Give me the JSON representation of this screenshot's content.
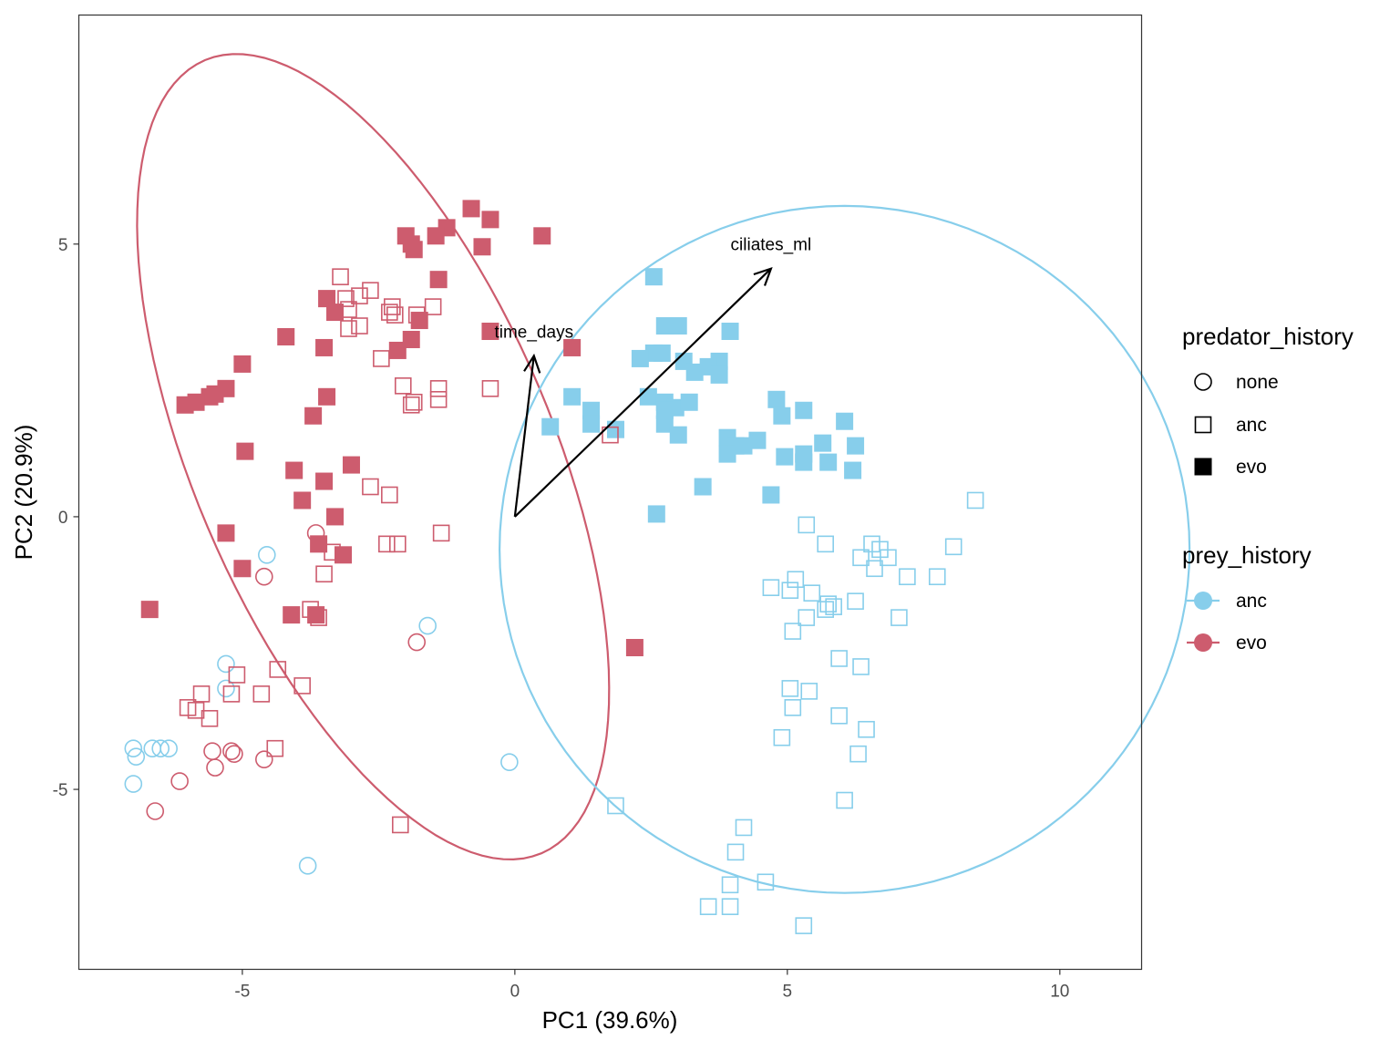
{
  "chart_data": {
    "type": "scatter",
    "title": "",
    "xlabel": "PC1 (39.6%)",
    "ylabel": "PC2 (20.9%)",
    "xlim": [
      -8.0,
      11.5
    ],
    "ylim": [
      -8.3,
      9.2
    ],
    "x_ticks": [
      {
        "value": -5,
        "label": "-5"
      },
      {
        "value": 0,
        "label": "0"
      },
      {
        "value": 5,
        "label": "5"
      },
      {
        "value": 10,
        "label": "10"
      }
    ],
    "y_ticks": [
      {
        "value": -5,
        "label": "-5"
      },
      {
        "value": 0,
        "label": "0"
      },
      {
        "value": 5,
        "label": "5"
      }
    ],
    "grid": false,
    "legend_placement": "right",
    "colors": {
      "anc": "#87ceeb",
      "evo": "#cd5c6e",
      "axis": "#333333"
    },
    "legends": [
      {
        "title": "predator_history",
        "entries": [
          {
            "label": "none",
            "shape": "circle-open"
          },
          {
            "label": "anc",
            "shape": "square-open"
          },
          {
            "label": "evo",
            "shape": "square-filled"
          }
        ]
      },
      {
        "title": "prey_history",
        "entries": [
          {
            "label": "anc",
            "color": "#87ceeb"
          },
          {
            "label": "evo",
            "color": "#cd5c6e"
          }
        ]
      }
    ],
    "loadings": [
      {
        "name": "time_days",
        "x": 0.35,
        "y": 2.95
      },
      {
        "name": "ciliates_ml",
        "x": 4.7,
        "y": 4.55
      }
    ],
    "ellipses": [
      {
        "prey_history": "evo",
        "center": [
          -2.6,
          1.1
        ],
        "semi_axes": [
          3.3,
          7.9
        ],
        "angle_deg": 23
      },
      {
        "prey_history": "anc",
        "center": [
          6.05,
          -0.6
        ],
        "semi_axes": [
          6.33,
          6.3
        ],
        "angle_deg": 0
      }
    ],
    "series": [
      {
        "prey_history": "anc",
        "predator_history": "none",
        "points": [
          [
            -4.55,
            -0.7
          ],
          [
            -5.3,
            -2.7
          ],
          [
            -5.3,
            -3.15
          ],
          [
            -7.0,
            -4.25
          ],
          [
            -6.95,
            -4.4
          ],
          [
            -6.5,
            -4.25
          ],
          [
            -6.35,
            -4.25
          ],
          [
            -6.65,
            -4.25
          ],
          [
            -7.0,
            -4.9
          ],
          [
            -1.6,
            -2.0
          ],
          [
            -0.1,
            -4.5
          ],
          [
            -3.8,
            -6.4
          ]
        ]
      },
      {
        "prey_history": "anc",
        "predator_history": "anc",
        "points": [
          [
            8.45,
            0.3
          ],
          [
            5.35,
            -0.15
          ],
          [
            5.7,
            -0.5
          ],
          [
            6.55,
            -0.5
          ],
          [
            6.7,
            -0.6
          ],
          [
            6.35,
            -0.75
          ],
          [
            6.85,
            -0.75
          ],
          [
            6.6,
            -0.95
          ],
          [
            8.05,
            -0.55
          ],
          [
            7.2,
            -1.1
          ],
          [
            7.75,
            -1.1
          ],
          [
            4.7,
            -1.3
          ],
          [
            5.15,
            -1.15
          ],
          [
            5.05,
            -1.35
          ],
          [
            5.45,
            -1.4
          ],
          [
            5.75,
            -1.6
          ],
          [
            5.7,
            -1.7
          ],
          [
            5.85,
            -1.65
          ],
          [
            6.25,
            -1.55
          ],
          [
            5.35,
            -1.85
          ],
          [
            5.1,
            -2.1
          ],
          [
            7.05,
            -1.85
          ],
          [
            5.95,
            -2.6
          ],
          [
            6.35,
            -2.75
          ],
          [
            5.05,
            -3.15
          ],
          [
            5.4,
            -3.2
          ],
          [
            5.1,
            -3.5
          ],
          [
            5.95,
            -3.65
          ],
          [
            6.45,
            -3.9
          ],
          [
            4.9,
            -4.05
          ],
          [
            6.3,
            -4.35
          ],
          [
            6.05,
            -5.2
          ],
          [
            1.85,
            -5.3
          ],
          [
            4.2,
            -5.7
          ],
          [
            4.05,
            -6.15
          ],
          [
            3.95,
            -6.75
          ],
          [
            4.6,
            -6.7
          ],
          [
            3.55,
            -7.15
          ],
          [
            3.95,
            -7.15
          ],
          [
            5.3,
            -7.5
          ]
        ]
      },
      {
        "prey_history": "anc",
        "predator_history": "evo",
        "points": [
          [
            2.55,
            4.4
          ],
          [
            3.0,
            3.5
          ],
          [
            2.75,
            3.5
          ],
          [
            3.95,
            3.4
          ],
          [
            2.55,
            3.0
          ],
          [
            2.7,
            3.0
          ],
          [
            2.3,
            2.9
          ],
          [
            3.1,
            2.85
          ],
          [
            3.75,
            2.85
          ],
          [
            3.3,
            2.65
          ],
          [
            3.55,
            2.75
          ],
          [
            3.75,
            2.6
          ],
          [
            1.05,
            2.2
          ],
          [
            2.45,
            2.2
          ],
          [
            2.75,
            2.1
          ],
          [
            2.95,
            2.0
          ],
          [
            3.2,
            2.1
          ],
          [
            1.4,
            1.95
          ],
          [
            1.4,
            1.7
          ],
          [
            0.65,
            1.65
          ],
          [
            1.85,
            1.6
          ],
          [
            2.75,
            1.7
          ],
          [
            2.75,
            1.95
          ],
          [
            3.0,
            1.5
          ],
          [
            3.9,
            1.45
          ],
          [
            4.05,
            1.3
          ],
          [
            3.9,
            1.15
          ],
          [
            4.2,
            1.3
          ],
          [
            4.45,
            1.4
          ],
          [
            4.8,
            2.15
          ],
          [
            4.9,
            1.85
          ],
          [
            5.3,
            1.95
          ],
          [
            6.05,
            1.75
          ],
          [
            6.25,
            1.3
          ],
          [
            5.65,
            1.35
          ],
          [
            5.3,
            1.15
          ],
          [
            5.3,
            1.0
          ],
          [
            4.95,
            1.1
          ],
          [
            5.75,
            1.0
          ],
          [
            6.2,
            0.85
          ],
          [
            3.45,
            0.55
          ],
          [
            4.7,
            0.4
          ],
          [
            2.6,
            0.05
          ]
        ]
      },
      {
        "prey_history": "evo",
        "predator_history": "none",
        "points": [
          [
            -3.65,
            -0.3
          ],
          [
            -4.6,
            -1.1
          ],
          [
            -1.8,
            -2.3
          ],
          [
            -5.55,
            -4.3
          ],
          [
            -5.2,
            -4.3
          ],
          [
            -5.15,
            -4.35
          ],
          [
            -4.6,
            -4.45
          ],
          [
            -5.5,
            -4.6
          ],
          [
            -6.15,
            -4.85
          ],
          [
            -6.6,
            -5.4
          ]
        ]
      },
      {
        "prey_history": "evo",
        "predator_history": "anc",
        "points": [
          [
            -3.2,
            4.4
          ],
          [
            -2.65,
            4.15
          ],
          [
            -3.1,
            4.0
          ],
          [
            -2.85,
            4.05
          ],
          [
            -3.05,
            3.8
          ],
          [
            -2.25,
            3.85
          ],
          [
            -2.3,
            3.75
          ],
          [
            -2.2,
            3.7
          ],
          [
            -1.8,
            3.7
          ],
          [
            -1.5,
            3.85
          ],
          [
            -3.05,
            3.45
          ],
          [
            -2.85,
            3.5
          ],
          [
            -2.45,
            2.9
          ],
          [
            -2.05,
            2.4
          ],
          [
            -1.4,
            2.35
          ],
          [
            -0.45,
            2.35
          ],
          [
            -1.85,
            2.1
          ],
          [
            -1.9,
            2.05
          ],
          [
            -1.4,
            2.15
          ],
          [
            1.75,
            1.5
          ],
          [
            -2.65,
            0.55
          ],
          [
            -2.3,
            0.4
          ],
          [
            -1.35,
            -0.3
          ],
          [
            -2.35,
            -0.5
          ],
          [
            -2.15,
            -0.5
          ],
          [
            -3.35,
            -0.65
          ],
          [
            -3.5,
            -1.05
          ],
          [
            -3.75,
            -1.7
          ],
          [
            -3.6,
            -1.85
          ],
          [
            -5.75,
            -3.25
          ],
          [
            -6.0,
            -3.5
          ],
          [
            -5.6,
            -3.7
          ],
          [
            -5.85,
            -3.55
          ],
          [
            -5.1,
            -2.9
          ],
          [
            -5.2,
            -3.25
          ],
          [
            -4.65,
            -3.25
          ],
          [
            -4.35,
            -2.8
          ],
          [
            -3.9,
            -3.1
          ],
          [
            -4.4,
            -4.25
          ],
          [
            -2.1,
            -5.65
          ]
        ]
      },
      {
        "prey_history": "evo",
        "predator_history": "evo",
        "points": [
          [
            -0.8,
            5.65
          ],
          [
            -0.45,
            5.45
          ],
          [
            -1.25,
            5.3
          ],
          [
            -2.0,
            5.15
          ],
          [
            -1.45,
            5.15
          ],
          [
            -1.9,
            5.0
          ],
          [
            -1.85,
            4.9
          ],
          [
            -0.6,
            4.95
          ],
          [
            0.5,
            5.15
          ],
          [
            -1.4,
            4.35
          ],
          [
            -3.45,
            4.0
          ],
          [
            -3.3,
            3.75
          ],
          [
            -1.75,
            3.6
          ],
          [
            -4.2,
            3.3
          ],
          [
            -3.5,
            3.1
          ],
          [
            -1.9,
            3.25
          ],
          [
            -2.15,
            3.05
          ],
          [
            -0.45,
            3.4
          ],
          [
            1.05,
            3.1
          ],
          [
            -5.0,
            2.8
          ],
          [
            -5.3,
            2.35
          ],
          [
            -5.5,
            2.25
          ],
          [
            -5.6,
            2.2
          ],
          [
            -5.85,
            2.1
          ],
          [
            -6.05,
            2.05
          ],
          [
            -3.45,
            2.2
          ],
          [
            -3.7,
            1.85
          ],
          [
            -4.95,
            1.2
          ],
          [
            -4.05,
            0.85
          ],
          [
            -3.5,
            0.65
          ],
          [
            -3.0,
            0.95
          ],
          [
            -3.9,
            0.3
          ],
          [
            -3.3,
            0.0
          ],
          [
            -5.3,
            -0.3
          ],
          [
            -3.6,
            -0.5
          ],
          [
            -3.15,
            -0.7
          ],
          [
            -5.0,
            -0.95
          ],
          [
            -6.7,
            -1.7
          ],
          [
            -4.1,
            -1.8
          ],
          [
            -3.65,
            -1.8
          ],
          [
            2.2,
            -2.4
          ]
        ]
      }
    ]
  }
}
